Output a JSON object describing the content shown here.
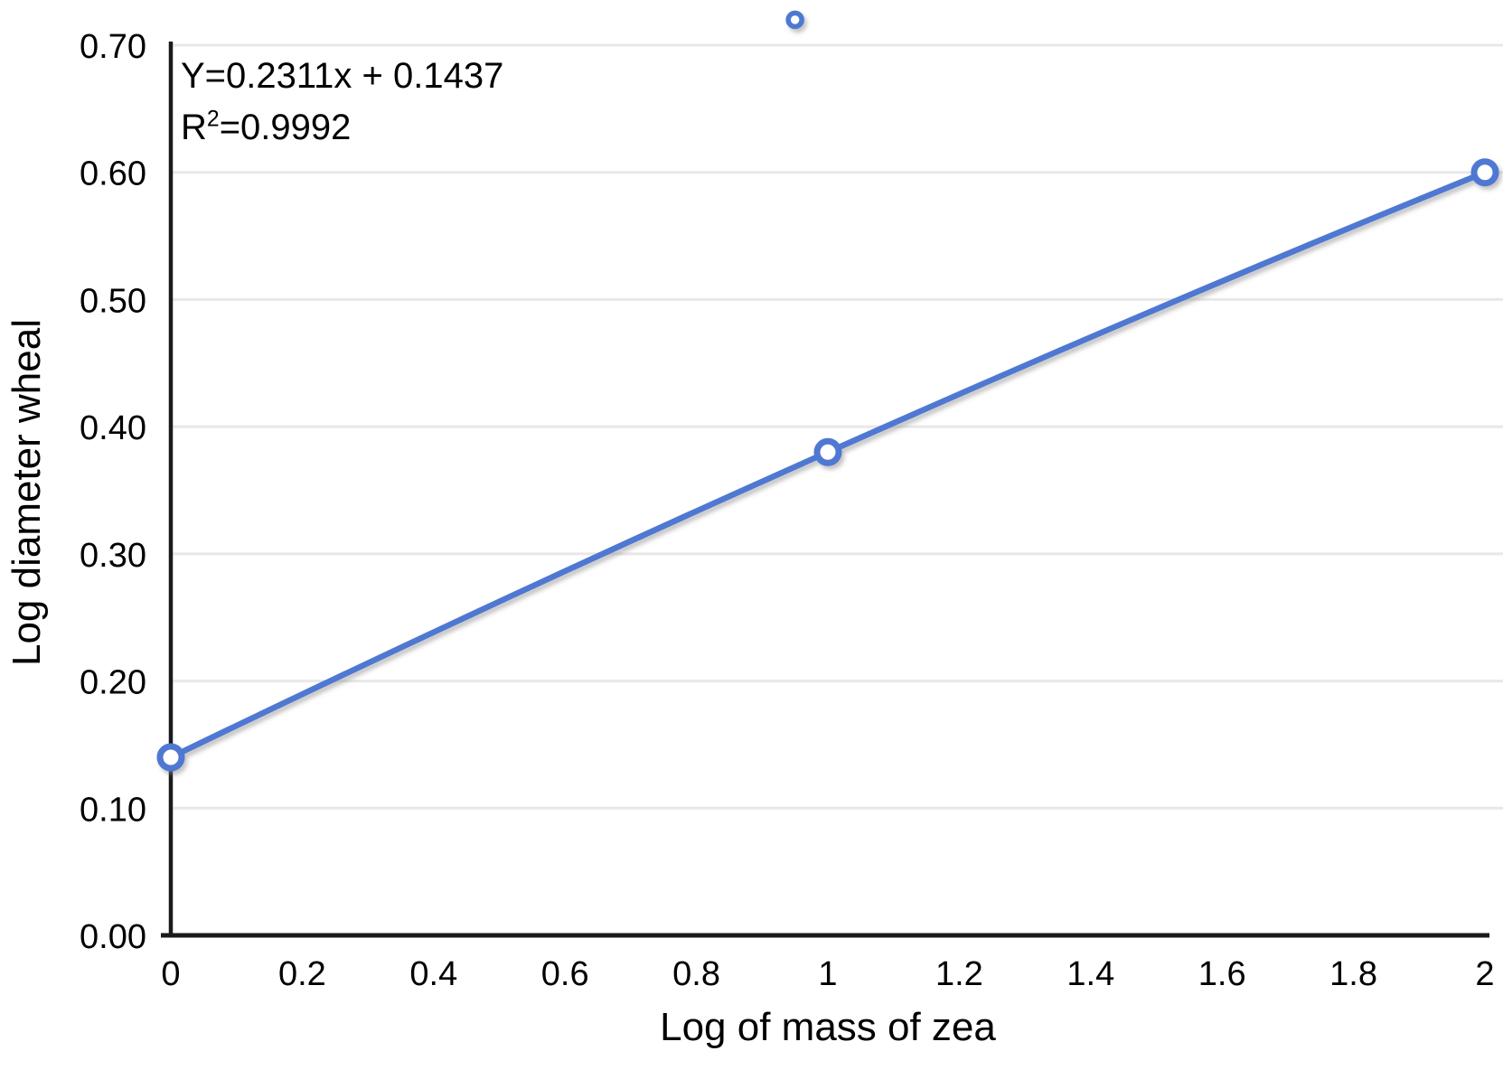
{
  "annotation": {
    "equation": "Y=0.2311x + 0.1437",
    "r2_base": "R",
    "r2_sup": "2",
    "r2_rest": "=0.9992"
  },
  "chart_data": {
    "type": "scatter",
    "title": "",
    "xlabel": "Log of mass of zea",
    "ylabel": "Log diameter wheal",
    "points": [
      {
        "x": 0,
        "y": 0.14
      },
      {
        "x": 1,
        "y": 0.38
      },
      {
        "x": 2,
        "y": 0.6
      }
    ],
    "extra_marker": {
      "x": 0.95,
      "y": 0.72
    },
    "trendline": {
      "equation": "Y=0.2311x + 0.1437",
      "slope": 0.2311,
      "intercept": 0.1437,
      "r_squared": 0.9992,
      "style": "smooth"
    },
    "xlim": [
      0,
      2
    ],
    "ylim": [
      0,
      0.7
    ],
    "x_ticks": [
      "0",
      "0.2",
      "0.4",
      "0.6",
      "0.8",
      "1",
      "1.2",
      "1.4",
      "1.6",
      "1.8",
      "2"
    ],
    "x_tick_values": [
      0,
      0.2,
      0.4,
      0.6,
      0.8,
      1,
      1.2,
      1.4,
      1.6,
      1.8,
      2
    ],
    "y_ticks": [
      "0.00",
      "0.10",
      "0.20",
      "0.30",
      "0.40",
      "0.50",
      "0.60",
      "0.70"
    ],
    "y_tick_values": [
      0,
      0.1,
      0.2,
      0.3,
      0.4,
      0.5,
      0.6,
      0.7
    ],
    "grid": "horizontal",
    "legend": "none",
    "colors": {
      "line": "#4f78d2",
      "marker_stroke": "#4f78d2",
      "marker_fill": "#ffffff",
      "gridline": "#e8e8e8",
      "axis": "#1a1a1a",
      "text": "#000000",
      "background": "#ffffff"
    }
  }
}
